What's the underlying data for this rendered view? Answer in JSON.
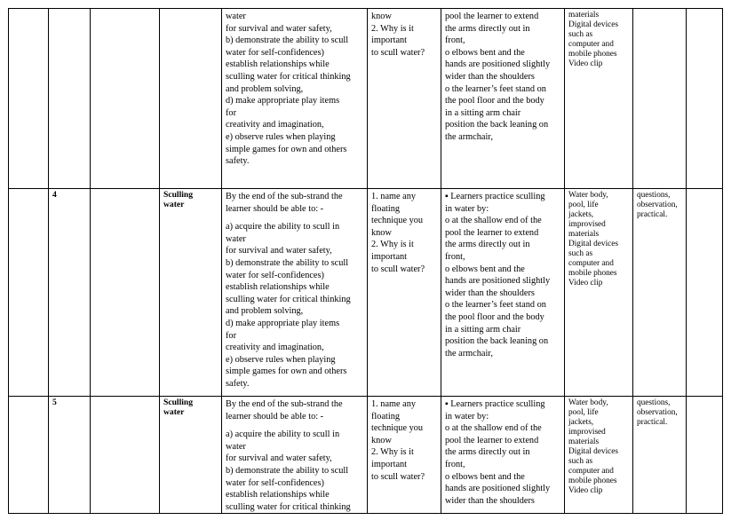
{
  "rows": [
    {
      "week": "",
      "lesson": "",
      "strand": "",
      "sub_strand": "",
      "objectives_intro": "",
      "objectives": "water\nfor survival and water safety,\nb) demonstrate the ability to scull\nwater for self-confidences)\nestablish relationships while\nsculling water for critical thinking\nand problem solving,\nd) make appropriate play items\nfor\ncreativity and imagination,\ne) observe rules when playing\nsimple games for own and others\nsafety.",
      "questions": "know\n2. Why is it\nimportant\nto scull water?",
      "activities": "pool the learner to extend\nthe arms directly out in\nfront,\no  elbows bent and the\nhands are positioned slightly\nwider than the shoulders\no  the learner’s feet stand on\nthe pool floor and the body\nin a sitting arm  chair\nposition the back leaning on\nthe armchair,",
      "resources": "materials\n Digital devices\nsuch as\ncomputer and\nmobile phones\n Video clip",
      "assessment": "",
      "reflection": ""
    },
    {
      "week": "",
      "lesson": "4",
      "strand": "",
      "sub_strand": "Sculling\nwater",
      "objectives_intro": "By the end of the sub-strand the\nlearner should be able to: -",
      "objectives": "a) acquire the ability to scull in\nwater\nfor survival and water safety,\nb) demonstrate the ability to scull\nwater for self-confidences)\nestablish relationships while\nsculling water for critical thinking\nand problem solving,\nd) make appropriate play items\nfor\ncreativity and imagination,\ne) observe rules when playing\nsimple games for own and others\nsafety.",
      "questions": "1. name any\nfloating\ntechnique you\nknow\n2. Why is it\nimportant\nto scull water?",
      "activities": "▪ Learners practice sculling\nin water by:\no  at the shallow end of the\npool the learner to extend\nthe arms directly out in\nfront,\no  elbows bent and the\nhands are positioned slightly\nwider than the shoulders\no  the learner’s feet stand on\nthe pool floor and the body\nin a sitting arm  chair\nposition the back leaning on\nthe armchair,",
      "resources": "Water body,\npool, life\njackets,\nimprovised\nmaterials\n Digital devices\nsuch as\ncomputer and\nmobile phones\n Video clip",
      "assessment": "questions,\nobservation,\npractical.",
      "reflection": ""
    },
    {
      "week": "",
      "lesson": "5",
      "strand": "",
      "sub_strand": "Sculling\nwater",
      "objectives_intro": "By the end of the sub-strand the\nlearner should be able to: -",
      "objectives": "a) acquire the ability to scull in\nwater\nfor survival and water safety,\nb) demonstrate the ability to scull\nwater for self-confidences)\nestablish relationships while\nsculling water for critical thinking",
      "questions": "1. name any\nfloating\ntechnique you\nknow\n2. Why is it\nimportant\nto scull water?",
      "activities": "▪ Learners practice sculling\nin water by:\no  at the shallow end of the\npool the learner to extend\nthe arms directly out in\nfront,\no  elbows bent and the\nhands are positioned slightly\nwider than the shoulders",
      "resources": "Water body,\npool, life\njackets,\nimprovised\nmaterials\n Digital devices\nsuch as\ncomputer and\nmobile phones\n Video clip",
      "assessment": "questions,\nobservation,\npractical.",
      "reflection": ""
    }
  ]
}
